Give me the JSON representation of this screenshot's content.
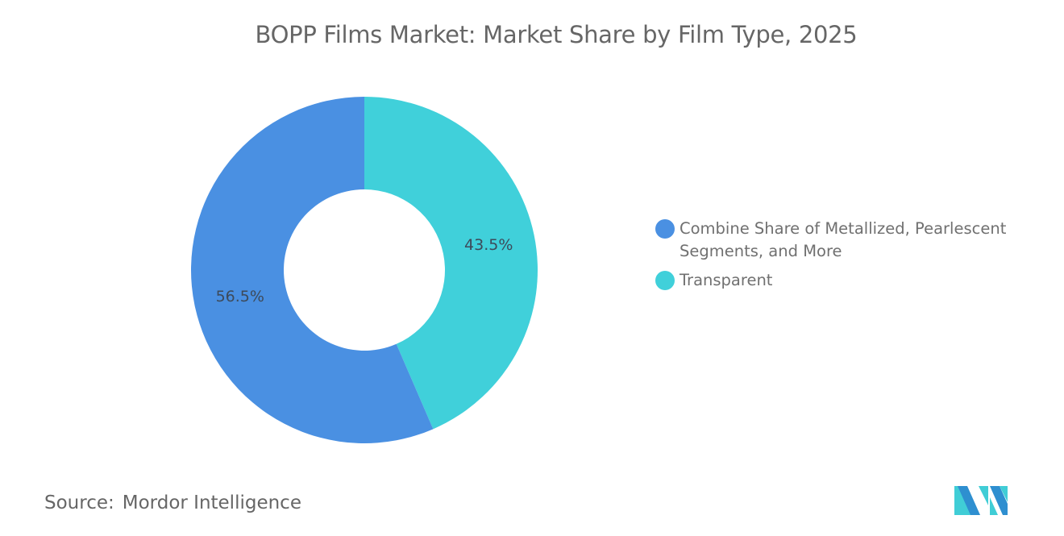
{
  "title": "BOPP Films Market: Market Share by Film Type, 2025",
  "chart_data": {
    "type": "pie",
    "variant": "donut",
    "title": "BOPP Films Market: Market Share by Film Type, 2025",
    "categories": [
      "Combine Share of Metallized, Pearlescent Segments, and More",
      "Transparent"
    ],
    "values": [
      56.5,
      43.5
    ],
    "unit": "%",
    "colors": [
      "#4a90e2",
      "#40d0da"
    ],
    "data_labels": [
      "56.5%",
      "43.5%"
    ],
    "legend_position": "right"
  },
  "legend": {
    "items": [
      {
        "label": "Combine Share of Metallized, Pearlescent Segments, and More",
        "color": "#4a90e2"
      },
      {
        "label": "Transparent",
        "color": "#40d0da"
      }
    ]
  },
  "source": {
    "key": "Source:",
    "value": "Mordor Intelligence"
  },
  "logo": {
    "name": "mordor-intelligence-logo",
    "colors": [
      "#2e8fd0",
      "#40cdd6"
    ]
  }
}
